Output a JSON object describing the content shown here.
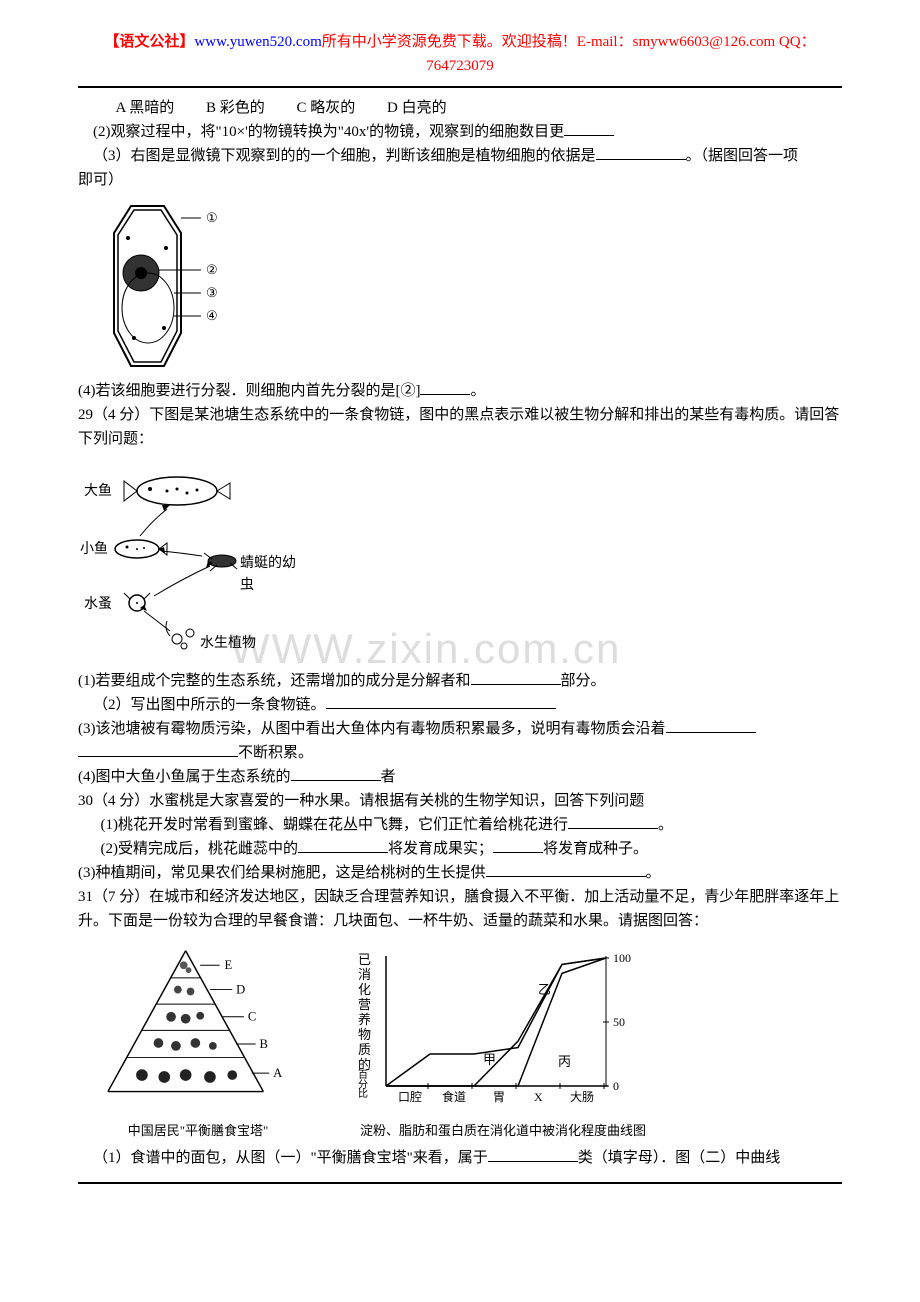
{
  "header": {
    "brand": "【语文公社】",
    "url": "www.yuwen520.com",
    "text1": "所有中小学资源免费下载。欢迎投稿！",
    "email_label": "E-mail：",
    "email": "smyww6603@126.com",
    "qq_label": " QQ：",
    "qq": "764723079"
  },
  "q28": {
    "options": {
      "a": "A 黑暗的",
      "b": "B 彩色的",
      "c": "C 略灰的",
      "d": "D 白亮的"
    },
    "part2": "(2)观察过程中，将\"10×'的物镜转换为\"40x'的物镜，观察到的细胞数目更",
    "part3": "（3）右图是显微镜下观察到的的一个细胞，判断该细胞是植物细胞的依据是",
    "part3_tail": "。（据图回答一项",
    "part3_line2": "即可）",
    "part4": "(4)若该细胞要进行分裂．则细胞内首先分裂的是[②]",
    "part4_tail": "。",
    "cell_labels": [
      "①",
      "②",
      "③",
      "④"
    ]
  },
  "q29": {
    "stem": " 29（4 分）下图是某池塘生态系统中的一条食物链，图中的黑点表示难以被生物分解和排出的某些有毒构质。请回答下列问题：",
    "labels": {
      "bigfish": "大鱼",
      "smallfish": "小鱼",
      "larva": "蜻蜓的幼虫",
      "flea": "水蚤",
      "plant": "水生植物"
    },
    "part1_a": "(1)若要组成个完整的生态系统，还需增加的成分是分解者和",
    "part1_b": "部分。",
    "part2": "（2）写出图中所示的一条食物链。",
    "part3_a": "(3)该池塘被有霉物质污染，从图中看出大鱼体内有毒物质积累最多，说明有毒物质会沿着",
    "part3_b": "不断积累。",
    "part4_a": "(4)图中大鱼小鱼属于生态系统的",
    "part4_b": "者"
  },
  "q30": {
    "stem": "30（4 分）水蜜桃是大家喜爱的一种水果。请根据有关桃的生物学知识，回答下列问题",
    "part1": "(1)桃花开发时常看到蜜蜂、蝴蝶在花丛中飞舞，它们正忙着给桃花进行",
    "part1_tail": "。",
    "part2_a": "(2)受精完成后，桃花雌蕊中的",
    "part2_b": "将发育成果实；",
    "part2_c": "将发育成种子。",
    "part3_a": "(3)种植期间，常见果农们给果树施肥，这是给桃树的生长提供",
    "part3_tail": "。"
  },
  "q31": {
    "stem": "31（7 分）在城市和经济发达地区，因缺乏合理营养知识，膳食摄入不平衡．加上活动量不足，青少年肥胖率逐年上升。下面是一份较为合理的早餐食谱：几块面包、一杯牛奶、适量的蔬菜和水果。请据图回答：",
    "pyramid": {
      "levels": [
        "E",
        "D",
        "C",
        "B",
        "A"
      ],
      "caption": "中国居民\"平衡膳食宝塔\""
    },
    "digestion": {
      "ylabel": "已消化营养物质的百分比",
      "ytick_values": [
        0,
        50,
        100
      ],
      "xlabels": [
        "口腔",
        "食道",
        "胃",
        "X",
        "大肠"
      ],
      "curve_labels": [
        "甲",
        "乙",
        "丙"
      ],
      "caption": "淀粉、脂肪和蛋白质在消化道中被消化程度曲线图",
      "curves": {
        "jia": [
          [
            0,
            0
          ],
          [
            1,
            25
          ],
          [
            2,
            25
          ],
          [
            3,
            30
          ],
          [
            4,
            95
          ],
          [
            5,
            100
          ]
        ],
        "yi": [
          [
            0,
            0
          ],
          [
            1,
            0
          ],
          [
            2,
            0
          ],
          [
            3,
            35
          ],
          [
            4,
            95
          ],
          [
            5,
            100
          ]
        ],
        "bing": [
          [
            0,
            0
          ],
          [
            1,
            0
          ],
          [
            2,
            0
          ],
          [
            3,
            0
          ],
          [
            4,
            88
          ],
          [
            5,
            100
          ]
        ]
      },
      "colors": {
        "axis": "#000000",
        "background": "#ffffff"
      }
    },
    "part1_a": "（1）食谱中的面包，从图（一）\"平衡膳食宝塔\"来看，属于",
    "part1_b": "类（填字母）．图（二）中曲线"
  }
}
